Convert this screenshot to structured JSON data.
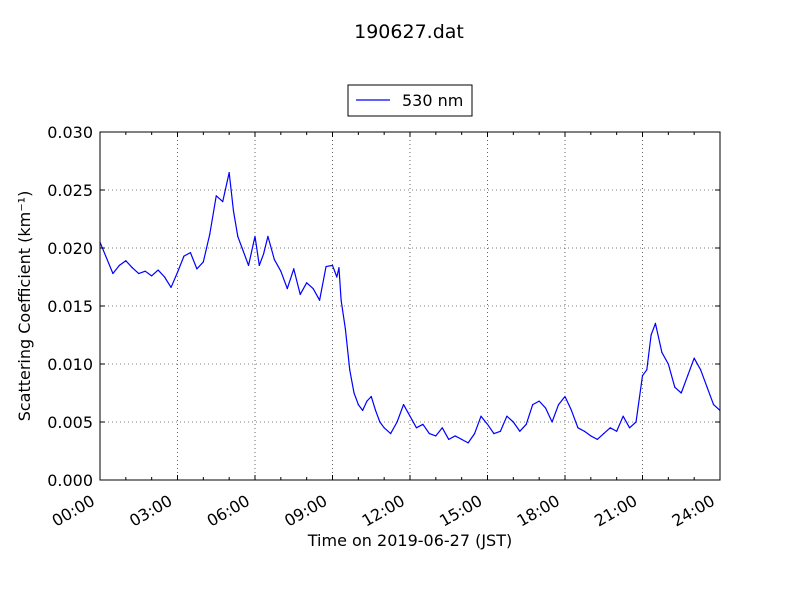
{
  "chart_data": {
    "type": "line",
    "title": "190627.dat",
    "xlabel": "Time on 2019-06-27 (JST)",
    "ylabel": "Scattering Coefficient (km⁻¹)",
    "xlim": [
      "00:00",
      "24:00"
    ],
    "ylim": [
      0.0,
      0.03
    ],
    "x_ticks": [
      "00:00",
      "03:00",
      "06:00",
      "09:00",
      "12:00",
      "15:00",
      "18:00",
      "21:00",
      "24:00"
    ],
    "y_ticks": [
      "0.000",
      "0.005",
      "0.010",
      "0.015",
      "0.020",
      "0.025",
      "0.030"
    ],
    "grid": true,
    "legend_position": "top-center",
    "series": [
      {
        "name": "530 nm",
        "color": "#0000ff",
        "x": [
          "00:00",
          "00:30",
          "00:45",
          "01:00",
          "01:15",
          "01:30",
          "01:45",
          "02:00",
          "02:15",
          "02:30",
          "02:45",
          "03:00",
          "03:15",
          "03:30",
          "03:45",
          "04:00",
          "04:15",
          "04:30",
          "04:45",
          "05:00",
          "05:10",
          "05:20",
          "05:30",
          "05:45",
          "06:00",
          "06:10",
          "06:20",
          "06:30",
          "06:45",
          "07:00",
          "07:15",
          "07:30",
          "07:45",
          "08:00",
          "08:15",
          "08:30",
          "08:45",
          "09:00",
          "09:05",
          "09:10",
          "09:15",
          "09:20",
          "09:30",
          "09:40",
          "09:50",
          "10:00",
          "10:10",
          "10:20",
          "10:30",
          "10:40",
          "10:50",
          "11:00",
          "11:15",
          "11:30",
          "11:45",
          "12:00",
          "12:15",
          "12:30",
          "12:45",
          "13:00",
          "13:15",
          "13:30",
          "13:45",
          "14:00",
          "14:15",
          "14:30",
          "14:45",
          "15:00",
          "15:15",
          "15:30",
          "15:45",
          "16:00",
          "16:15",
          "16:30",
          "16:45",
          "17:00",
          "17:15",
          "17:30",
          "17:45",
          "18:00",
          "18:15",
          "18:30",
          "18:45",
          "19:00",
          "19:15",
          "19:30",
          "19:45",
          "20:00",
          "20:15",
          "20:30",
          "20:45",
          "21:00",
          "21:10",
          "21:20",
          "21:30",
          "21:45",
          "22:00",
          "22:15",
          "22:30",
          "22:45",
          "23:00",
          "23:15",
          "23:30",
          "23:45",
          "24:00"
        ],
        "values": [
          0.0205,
          0.0178,
          0.0185,
          0.0189,
          0.0183,
          0.0178,
          0.018,
          0.0176,
          0.0181,
          0.0175,
          0.0166,
          0.0179,
          0.0193,
          0.0196,
          0.0182,
          0.0188,
          0.0212,
          0.0245,
          0.024,
          0.0265,
          0.0232,
          0.021,
          0.02,
          0.0185,
          0.021,
          0.0185,
          0.0195,
          0.021,
          0.019,
          0.018,
          0.0165,
          0.0182,
          0.016,
          0.017,
          0.0165,
          0.0155,
          0.0184,
          0.0185,
          0.018,
          0.0175,
          0.0183,
          0.0155,
          0.013,
          0.0095,
          0.0075,
          0.0065,
          0.006,
          0.0068,
          0.0072,
          0.006,
          0.005,
          0.0045,
          0.004,
          0.005,
          0.0065,
          0.0055,
          0.0045,
          0.0048,
          0.004,
          0.0038,
          0.0045,
          0.0035,
          0.0038,
          0.0035,
          0.0032,
          0.004,
          0.0055,
          0.0048,
          0.004,
          0.0042,
          0.0055,
          0.005,
          0.0042,
          0.0048,
          0.0065,
          0.0068,
          0.0062,
          0.005,
          0.0065,
          0.0072,
          0.006,
          0.0045,
          0.0042,
          0.0038,
          0.0035,
          0.004,
          0.0045,
          0.0042,
          0.0055,
          0.0045,
          0.005,
          0.009,
          0.0095,
          0.0125,
          0.0135,
          0.011,
          0.01,
          0.008,
          0.0075,
          0.009,
          0.0105,
          0.0095,
          0.008,
          0.0065,
          0.006
        ]
      }
    ]
  }
}
